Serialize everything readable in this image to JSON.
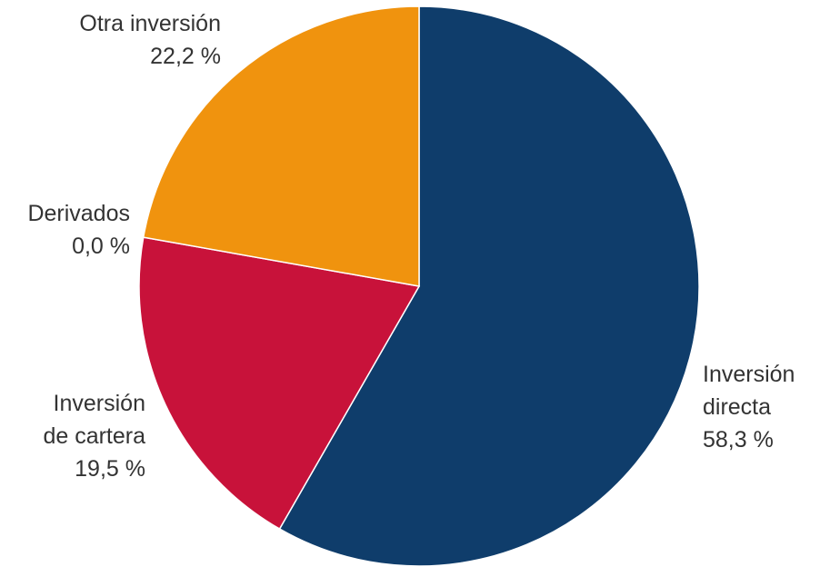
{
  "chart_data": {
    "type": "pie",
    "title": "",
    "start_angle": "12 o'clock",
    "direction": "clockwise",
    "slices": [
      {
        "name": "Inversión directa",
        "label_lines": [
          "Inversión",
          "directa"
        ],
        "value": 58.3,
        "value_label": "58,3 %",
        "color": "#0f3d6b"
      },
      {
        "name": "Inversión de cartera",
        "label_lines": [
          "Inversión",
          "de cartera"
        ],
        "value": 19.5,
        "value_label": "19,5 %",
        "color": "#c8123a"
      },
      {
        "name": "Derivados",
        "label_lines": [
          "Derivados"
        ],
        "value": 0.0,
        "value_label": "0,0 %",
        "color": "#9a9a9a"
      },
      {
        "name": "Otra inversión",
        "label_lines": [
          "Otra inversión"
        ],
        "value": 22.2,
        "value_label": "22,2 %",
        "color": "#f0930e"
      }
    ]
  }
}
